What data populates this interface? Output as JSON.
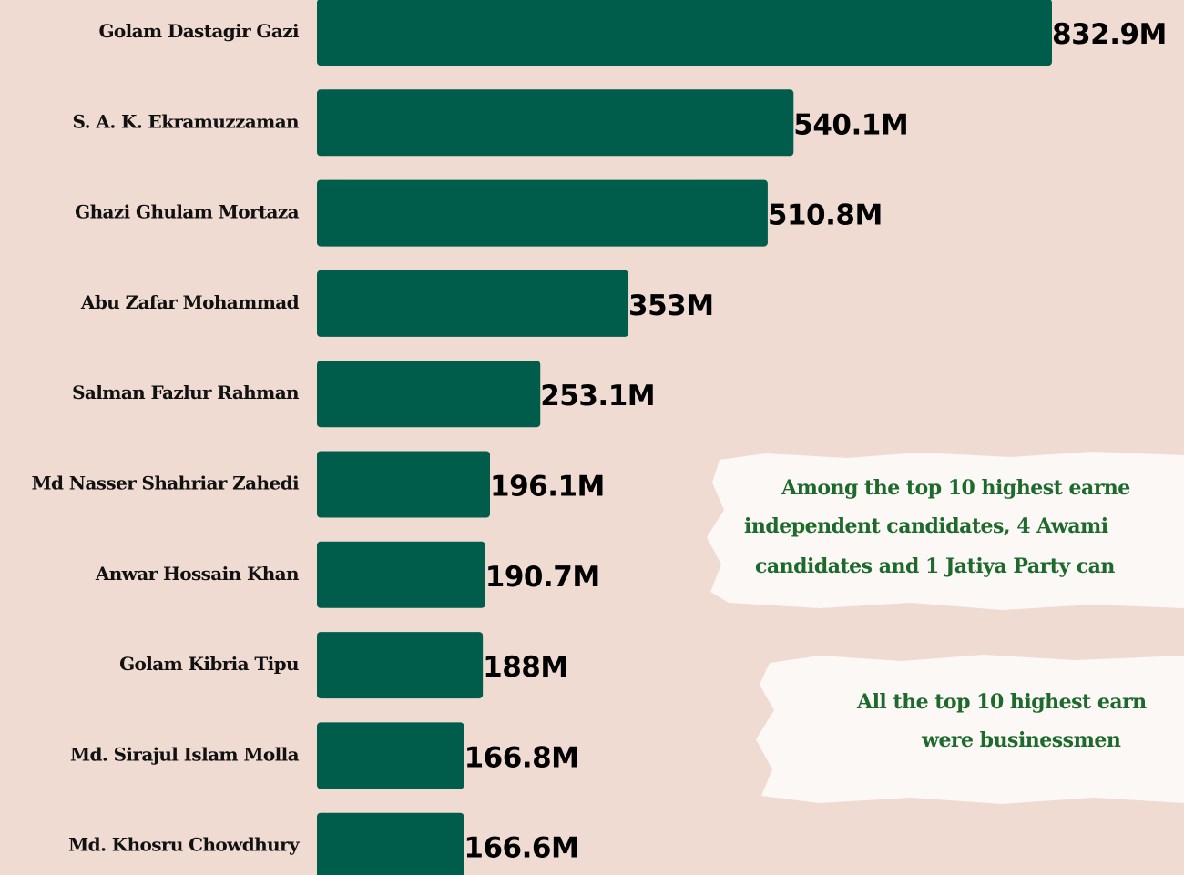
{
  "chart_data": {
    "type": "bar",
    "orientation": "horizontal",
    "categories": [
      "Golam Dastagir Gazi",
      "S. A. K. Ekramuzzaman",
      "Ghazi Ghulam Mortaza",
      "Abu Zafar Mohammad",
      "Salman Fazlur Rahman",
      "Md Nasser Shahriar Zahedi",
      "Anwar Hossain Khan",
      "Golam Kibria Tipu",
      "Md. Sirajul Islam Molla",
      "Md. Khosru Chowdhury"
    ],
    "values": [
      832.9,
      540.1,
      510.8,
      353,
      253.1,
      196.1,
      190.7,
      188,
      166.8,
      166.6
    ],
    "value_labels": [
      "832.9M",
      "540.1M",
      "510.8M",
      "353M",
      "253.1M",
      "196.1M",
      "190.7M",
      "188M",
      "166.8M",
      "166.6M"
    ],
    "color": "#005c4b",
    "annotations": [
      [
        "Among the top 10 highest earne",
        "independent candidates, 4 Awami",
        "candidates and 1  Jatiya Party can"
      ],
      [
        "All the top 10 highest earn",
        "were  businessmen"
      ]
    ]
  }
}
